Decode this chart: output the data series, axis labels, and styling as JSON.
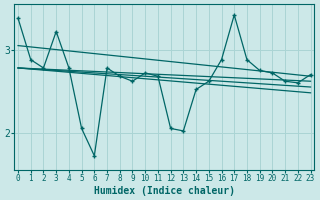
{
  "xlabel": "Humidex (Indice chaleur)",
  "background_color": "#cce8e8",
  "grid_color": "#aad4d4",
  "line_color": "#006666",
  "x_ticks": [
    0,
    1,
    2,
    3,
    4,
    5,
    6,
    7,
    8,
    9,
    10,
    11,
    12,
    13,
    14,
    15,
    16,
    17,
    18,
    19,
    20,
    21,
    22,
    23
  ],
  "y_ticks": [
    2,
    3
  ],
  "xlim": [
    -0.3,
    23.3
  ],
  "ylim": [
    1.55,
    3.55
  ],
  "series": [
    {
      "x": [
        0,
        1,
        2,
        3,
        4,
        5,
        6,
        7,
        8,
        9,
        10,
        11,
        12,
        13,
        14,
        15,
        16,
        17,
        18,
        19,
        20,
        21,
        22,
        23
      ],
      "y": [
        3.38,
        2.88,
        2.78,
        3.22,
        2.78,
        2.05,
        1.72,
        2.78,
        2.68,
        2.62,
        2.72,
        2.68,
        2.05,
        2.02,
        2.52,
        2.62,
        2.88,
        3.42,
        2.88,
        2.75,
        2.72,
        2.62,
        2.6,
        2.7
      ]
    },
    {
      "x": [
        0,
        23
      ],
      "y": [
        3.05,
        2.68
      ]
    },
    {
      "x": [
        0,
        23
      ],
      "y": [
        2.78,
        2.62
      ]
    },
    {
      "x": [
        0,
        23
      ],
      "y": [
        2.78,
        2.55
      ]
    },
    {
      "x": [
        0,
        23
      ],
      "y": [
        2.78,
        2.48
      ]
    }
  ]
}
